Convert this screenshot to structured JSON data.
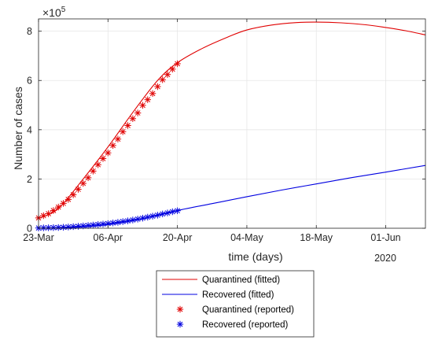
{
  "chart_data": {
    "type": "line",
    "xlabel": "time (days)",
    "ylabel": "Number of cases",
    "y_exponent_label": "×10",
    "y_exponent_power": "5",
    "year_label": "2020",
    "x_ticks": [
      "23-Mar",
      "06-Apr",
      "20-Apr",
      "04-May",
      "18-May",
      "01-Jun"
    ],
    "y_ticks": [
      "0",
      "2",
      "4",
      "6",
      "8"
    ],
    "xlim": [
      "2020-03-23",
      "2020-06-09"
    ],
    "ylim": [
      0,
      850000
    ],
    "grid": true,
    "legend_position": "bottom-outside",
    "series": [
      {
        "name": "Quarantined (fitted)",
        "style": "line",
        "color": "#e00000",
        "x": [
          "2020-03-23",
          "2020-03-27",
          "2020-04-01",
          "2020-04-06",
          "2020-04-11",
          "2020-04-16",
          "2020-04-20",
          "2020-04-25",
          "2020-04-30",
          "2020-05-04",
          "2020-05-09",
          "2020-05-14",
          "2020-05-18",
          "2020-05-23",
          "2020-05-28",
          "2020-06-01",
          "2020-06-05",
          "2020-06-09"
        ],
        "values": [
          40000,
          80000,
          200000,
          330000,
          470000,
          600000,
          672000,
          730000,
          775000,
          805000,
          825000,
          835000,
          837000,
          834000,
          826000,
          815000,
          802000,
          785000
        ]
      },
      {
        "name": "Recovered (fitted)",
        "style": "line",
        "color": "#0000e0",
        "x": [
          "2020-03-23",
          "2020-03-30",
          "2020-04-06",
          "2020-04-13",
          "2020-04-20",
          "2020-04-27",
          "2020-05-04",
          "2020-05-11",
          "2020-05-18",
          "2020-05-25",
          "2020-06-01",
          "2020-06-09"
        ],
        "values": [
          0,
          3000,
          15000,
          38000,
          72000,
          100000,
          128000,
          155000,
          180000,
          205000,
          228000,
          255000
        ]
      },
      {
        "name": "Quarantined (reported)",
        "style": "markers",
        "color": "#e00000",
        "x": [
          "2020-03-23",
          "2020-03-24",
          "2020-03-25",
          "2020-03-26",
          "2020-03-27",
          "2020-03-28",
          "2020-03-29",
          "2020-03-30",
          "2020-03-31",
          "2020-04-01",
          "2020-04-02",
          "2020-04-03",
          "2020-04-04",
          "2020-04-05",
          "2020-04-06",
          "2020-04-07",
          "2020-04-08",
          "2020-04-09",
          "2020-04-10",
          "2020-04-11",
          "2020-04-12",
          "2020-04-13",
          "2020-04-14",
          "2020-04-15",
          "2020-04-16",
          "2020-04-17",
          "2020-04-18",
          "2020-04-19",
          "2020-04-20"
        ],
        "values": [
          42000,
          51000,
          59000,
          72000,
          86000,
          101000,
          117000,
          136000,
          158000,
          182000,
          205000,
          232000,
          258000,
          283000,
          306000,
          336000,
          362000,
          392000,
          417000,
          445000,
          468000,
          499000,
          522000,
          547000,
          575000,
          603000,
          624000,
          646000,
          668000
        ]
      },
      {
        "name": "Recovered (reported)",
        "style": "markers",
        "color": "#0000e0",
        "x": [
          "2020-03-23",
          "2020-03-24",
          "2020-03-25",
          "2020-03-26",
          "2020-03-27",
          "2020-03-28",
          "2020-03-29",
          "2020-03-30",
          "2020-03-31",
          "2020-04-01",
          "2020-04-02",
          "2020-04-03",
          "2020-04-04",
          "2020-04-05",
          "2020-04-06",
          "2020-04-07",
          "2020-04-08",
          "2020-04-09",
          "2020-04-10",
          "2020-04-11",
          "2020-04-12",
          "2020-04-13",
          "2020-04-14",
          "2020-04-15",
          "2020-04-16",
          "2020-04-17",
          "2020-04-18",
          "2020-04-19",
          "2020-04-20"
        ],
        "values": [
          1000,
          1500,
          2000,
          2500,
          3000,
          4000,
          5000,
          6500,
          8000,
          9500,
          11000,
          13000,
          15000,
          17000,
          19000,
          21500,
          24000,
          27000,
          30000,
          33500,
          37000,
          41000,
          45000,
          49000,
          53000,
          58000,
          62000,
          67000,
          71000
        ]
      }
    ]
  }
}
